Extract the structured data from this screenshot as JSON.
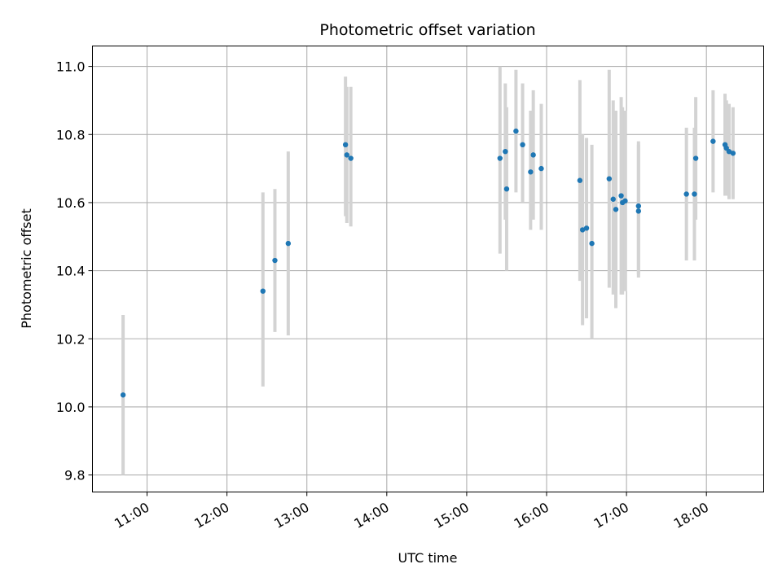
{
  "chart_data": {
    "type": "scatter",
    "title": "Photometric offset variation",
    "xlabel": "UTC time",
    "ylabel": "Photometric offset",
    "x_tick_labels": [
      "11:00",
      "12:00",
      "13:00",
      "14:00",
      "15:00",
      "16:00",
      "17:00",
      "18:00"
    ],
    "y_tick_labels": [
      "9.8",
      "10.0",
      "10.2",
      "10.4",
      "10.6",
      "10.8",
      "11.0"
    ],
    "xlim": [
      "10:19",
      "18:43"
    ],
    "ylim": [
      9.75,
      11.06
    ],
    "grid": true,
    "colors": {
      "points": "#1f77b4",
      "error_bars": "#d3d3d3",
      "grid": "#b0b0b0",
      "axes": "#000000"
    },
    "series": [
      {
        "error_bar": "vertical",
        "points": [
          {
            "x": "10:42",
            "y": 10.035,
            "ylow": 9.8,
            "yhigh": 10.27
          },
          {
            "x": "12:27",
            "y": 10.34,
            "ylow": 10.06,
            "yhigh": 10.63
          },
          {
            "x": "12:36",
            "y": 10.43,
            "ylow": 10.22,
            "yhigh": 10.64
          },
          {
            "x": "12:46",
            "y": 10.48,
            "ylow": 10.21,
            "yhigh": 10.75
          },
          {
            "x": "13:29",
            "y": 10.77,
            "ylow": 10.56,
            "yhigh": 10.97
          },
          {
            "x": "13:30",
            "y": 10.74,
            "ylow": 10.54,
            "yhigh": 10.94
          },
          {
            "x": "13:33",
            "y": 10.73,
            "ylow": 10.53,
            "yhigh": 10.94
          },
          {
            "x": "15:25",
            "y": 10.73,
            "ylow": 10.45,
            "yhigh": 11.0
          },
          {
            "x": "15:29",
            "y": 10.75,
            "ylow": 10.55,
            "yhigh": 10.95
          },
          {
            "x": "15:30",
            "y": 10.64,
            "ylow": 10.4,
            "yhigh": 10.88
          },
          {
            "x": "15:37",
            "y": 10.81,
            "ylow": 10.63,
            "yhigh": 10.99
          },
          {
            "x": "15:42",
            "y": 10.77,
            "ylow": 10.6,
            "yhigh": 10.95
          },
          {
            "x": "15:48",
            "y": 10.69,
            "ylow": 10.52,
            "yhigh": 10.87
          },
          {
            "x": "15:50",
            "y": 10.74,
            "ylow": 10.55,
            "yhigh": 10.93
          },
          {
            "x": "15:56",
            "y": 10.7,
            "ylow": 10.52,
            "yhigh": 10.89
          },
          {
            "x": "16:25",
            "y": 10.665,
            "ylow": 10.37,
            "yhigh": 10.96
          },
          {
            "x": "16:27",
            "y": 10.52,
            "ylow": 10.24,
            "yhigh": 10.8
          },
          {
            "x": "16:30",
            "y": 10.525,
            "ylow": 10.26,
            "yhigh": 10.79
          },
          {
            "x": "16:34",
            "y": 10.48,
            "ylow": 10.2,
            "yhigh": 10.77
          },
          {
            "x": "16:47",
            "y": 10.67,
            "ylow": 10.35,
            "yhigh": 10.99
          },
          {
            "x": "16:50",
            "y": 10.61,
            "ylow": 10.33,
            "yhigh": 10.9
          },
          {
            "x": "16:52",
            "y": 10.58,
            "ylow": 10.29,
            "yhigh": 10.87
          },
          {
            "x": "16:56",
            "y": 10.62,
            "ylow": 10.33,
            "yhigh": 10.91
          },
          {
            "x": "16:57",
            "y": 10.6,
            "ylow": 10.33,
            "yhigh": 10.88
          },
          {
            "x": "16:59",
            "y": 10.605,
            "ylow": 10.34,
            "yhigh": 10.87
          },
          {
            "x": "17:09",
            "y": 10.59,
            "ylow": 10.39,
            "yhigh": 10.78
          },
          {
            "x": "17:09",
            "y": 10.575,
            "ylow": 10.38,
            "yhigh": 10.77
          },
          {
            "x": "17:45",
            "y": 10.625,
            "ylow": 10.43,
            "yhigh": 10.82
          },
          {
            "x": "17:51",
            "y": 10.625,
            "ylow": 10.43,
            "yhigh": 10.82
          },
          {
            "x": "17:52",
            "y": 10.73,
            "ylow": 10.55,
            "yhigh": 10.91
          },
          {
            "x": "18:05",
            "y": 10.78,
            "ylow": 10.63,
            "yhigh": 10.93
          },
          {
            "x": "18:14",
            "y": 10.77,
            "ylow": 10.62,
            "yhigh": 10.92
          },
          {
            "x": "18:15",
            "y": 10.76,
            "ylow": 10.62,
            "yhigh": 10.9
          },
          {
            "x": "18:17",
            "y": 10.75,
            "ylow": 10.61,
            "yhigh": 10.89
          },
          {
            "x": "18:20",
            "y": 10.745,
            "ylow": 10.61,
            "yhigh": 10.88
          }
        ]
      }
    ]
  }
}
